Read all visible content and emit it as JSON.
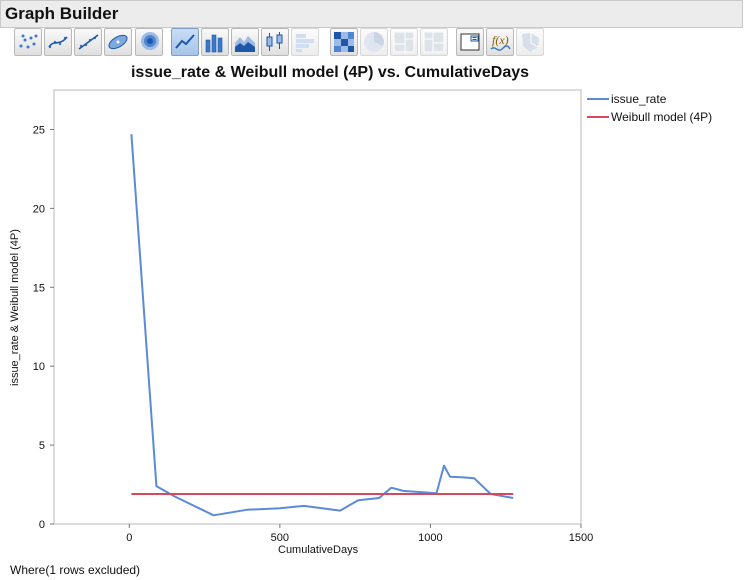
{
  "app": {
    "title": "Graph Builder"
  },
  "toolbar": {
    "buttons": [
      {
        "name": "points-button",
        "icon": "points-icon"
      },
      {
        "name": "smoother-button",
        "icon": "smoother-icon"
      },
      {
        "name": "line-of-fit-button",
        "icon": "line-of-fit-icon"
      },
      {
        "name": "ellipse-button",
        "icon": "ellipse-icon"
      },
      {
        "name": "contour-button",
        "icon": "contour-icon"
      },
      {
        "name": "line-button",
        "icon": "line-chart-icon",
        "active": true
      },
      {
        "name": "bar-button",
        "icon": "bar-chart-icon"
      },
      {
        "name": "area-button",
        "icon": "area-chart-icon"
      },
      {
        "name": "box-plot-button",
        "icon": "box-plot-icon"
      },
      {
        "name": "histogram-button",
        "icon": "histogram-icon"
      },
      {
        "name": "heatmap-button",
        "icon": "heatmap-icon"
      },
      {
        "name": "pie-button",
        "icon": "pie-chart-icon"
      },
      {
        "name": "treemap-button",
        "icon": "treemap-icon"
      },
      {
        "name": "mosaic-button",
        "icon": "mosaic-icon"
      },
      {
        "name": "caption-box-button",
        "icon": "caption-box-icon"
      },
      {
        "name": "formula-button",
        "icon": "formula-icon"
      },
      {
        "name": "map-shapes-button",
        "icon": "map-shapes-icon"
      }
    ]
  },
  "chart_data": {
    "type": "line",
    "title": "issue_rate & Weibull model (4P) vs. CumulativeDays",
    "xlabel": "CumulativeDays",
    "ylabel": "issue_rate & Weibull model (4P)",
    "xlim": [
      -250,
      1500
    ],
    "ylim": [
      0,
      27.5
    ],
    "xticks": [
      0,
      500,
      1000,
      1500
    ],
    "yticks": [
      0,
      5,
      10,
      15,
      20,
      25
    ],
    "grid": false,
    "legend_position": "right",
    "series": [
      {
        "name": "issue_rate",
        "color": "#5b8ad8",
        "x": [
          7,
          90,
          150,
          280,
          390,
          500,
          580,
          700,
          760,
          830,
          870,
          910,
          1020,
          1045,
          1065,
          1110,
          1145,
          1200,
          1275
        ],
        "y": [
          24.7,
          2.4,
          1.75,
          0.55,
          0.9,
          1.0,
          1.15,
          0.85,
          1.5,
          1.65,
          2.3,
          2.1,
          1.95,
          3.7,
          3.0,
          2.95,
          2.9,
          1.9,
          1.65
        ]
      },
      {
        "name": "Weibull model (4P)",
        "color": "#d9485a",
        "x": [
          7,
          1275
        ],
        "y": [
          1.9,
          1.9
        ]
      }
    ]
  },
  "footer": {
    "text": "Where(1 rows excluded)"
  }
}
